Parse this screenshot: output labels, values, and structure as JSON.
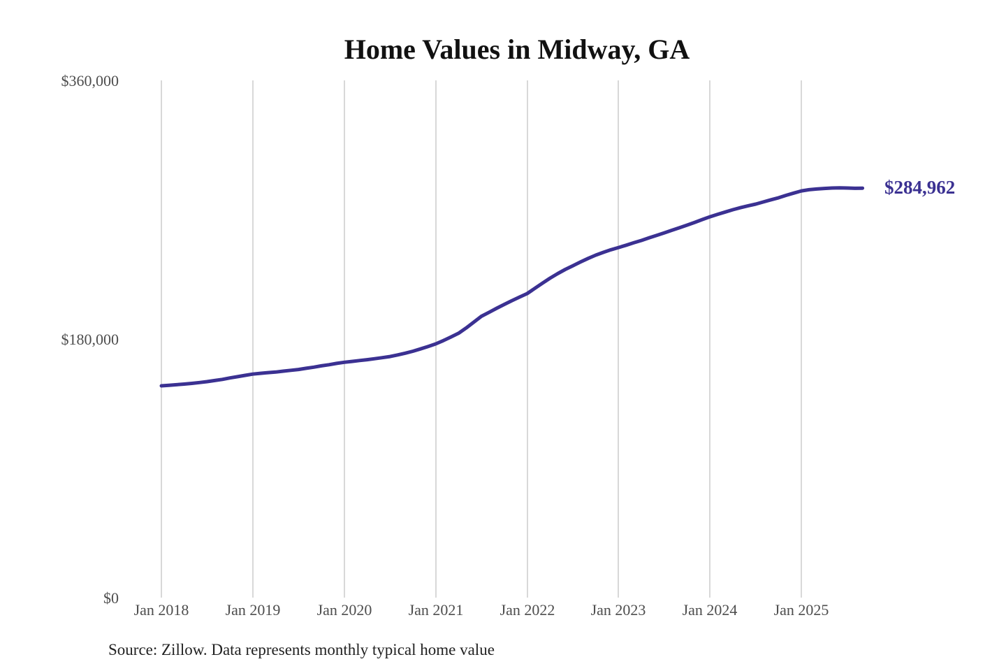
{
  "title": "Home Values in Midway, GA",
  "annotation": {
    "final_value_label": "$284,962"
  },
  "source_note": "Source: Zillow. Data represents monthly typical home value",
  "colors": {
    "line": "#3b3192",
    "annotation_text": "#3b3192",
    "grid": "#cccccc",
    "axis_text": "#4d4d4d",
    "title_text": "#111111",
    "source_text": "#222222",
    "background": "#ffffff"
  },
  "chart_data": {
    "type": "line",
    "title": "Home Values in Midway, GA",
    "series_name": "Monthly typical home value",
    "x_start": "Jan 2018",
    "x_end": "Sep 2025",
    "x_step": "month",
    "x_ticks": [
      "Jan 2018",
      "Jan 2019",
      "Jan 2020",
      "Jan 2021",
      "Jan 2022",
      "Jan 2023",
      "Jan 2024",
      "Jan 2025"
    ],
    "y_tick_labels": [
      "$360,000",
      "$180,000",
      "$0"
    ],
    "ylim": [
      0,
      360000
    ],
    "grid": "vertical only",
    "legend": "none",
    "final_value": 284962,
    "values": [
      147400,
      147800,
      148200,
      148600,
      149100,
      149700,
      150300,
      151100,
      151900,
      152900,
      153800,
      154700,
      155600,
      156100,
      156600,
      157000,
      157600,
      158200,
      158800,
      159600,
      160400,
      161300,
      162100,
      163000,
      163800,
      164400,
      165000,
      165600,
      166300,
      167000,
      167800,
      168900,
      170100,
      171500,
      173100,
      174800,
      176600,
      178900,
      181400,
      184000,
      187700,
      191700,
      195800,
      198600,
      201400,
      204100,
      206700,
      209200,
      211600,
      215200,
      218800,
      222300,
      225500,
      228400,
      231000,
      233600,
      236100,
      238400,
      240300,
      242100,
      243700,
      245300,
      247000,
      248600,
      250400,
      252100,
      253900,
      255700,
      257500,
      259300,
      261200,
      263200,
      265100,
      266800,
      268400,
      270000,
      271400,
      272700,
      273900,
      275400,
      276900,
      278300,
      280000,
      281600,
      283100,
      283900,
      284400,
      284800,
      285100,
      285200,
      285100,
      284900,
      284962
    ]
  }
}
